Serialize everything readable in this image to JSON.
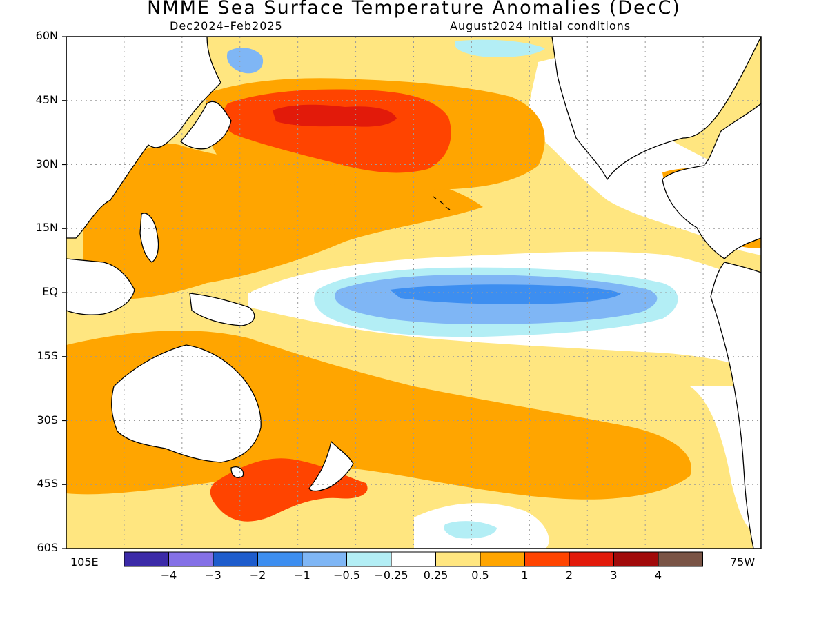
{
  "title": "NMME Sea Surface Temperature Anomalies (DecC)",
  "subtitle_left": "Dec2024–Feb2025",
  "subtitle_right": "August2024 initial conditions",
  "lat_labels": [
    "60N",
    "45N",
    "30N",
    "15N",
    "EQ",
    "15S",
    "30S",
    "45S",
    "60S"
  ],
  "lon_labels": {
    "west": "105E",
    "east": "75W"
  },
  "colorbar": {
    "labels": [
      "−4",
      "−3",
      "−2",
      "−1",
      "−0.5",
      "−0.25",
      "0.25",
      "0.5",
      "1",
      "2",
      "3",
      "4"
    ],
    "colors": [
      "#3b2aa8",
      "#8470e6",
      "#1e5ccc",
      "#3d8ef0",
      "#7fb6f5",
      "#b3eef5",
      "#ffffff",
      "#ffe680",
      "#ffa500",
      "#ff4400",
      "#e21a0a",
      "#a10a0a",
      "#7a5446"
    ]
  },
  "colors": {
    "land": "#ffffff",
    "coast": "#000000",
    "grid": "#9a9a9a",
    "c_neg2": "#3d8ef0",
    "c_neg1": "#7fb6f5",
    "c_neg05": "#b3eef5",
    "c_pos025": "#ffe680",
    "c_pos05": "#ffa500",
    "c_pos1": "#ff4400",
    "c_pos2": "#e21a0a"
  }
}
